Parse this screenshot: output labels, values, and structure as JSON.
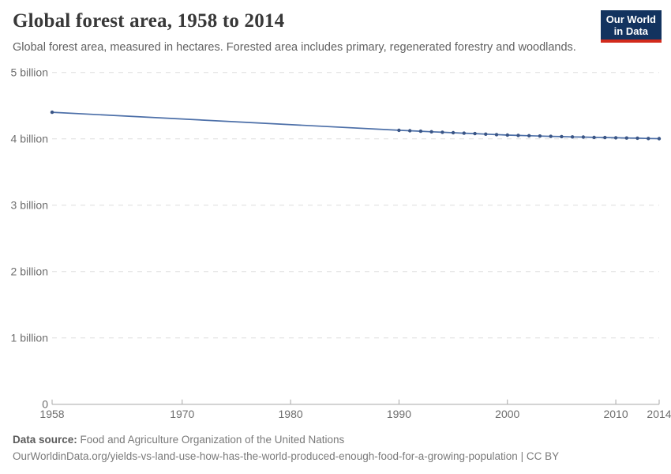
{
  "header": {
    "title": "Global forest area, 1958 to 2014",
    "subtitle": "Global forest area, measured in hectares. Forested area includes primary, regenerated forestry and woodlands."
  },
  "logo": {
    "line1": "Our World",
    "line2": "in Data",
    "background_color": "#13335f",
    "accent_color": "#d22a1c"
  },
  "footer": {
    "data_source_label": "Data source:",
    "data_source_value": "Food and Agriculture Organization of the United Nations",
    "url": "OurWorldinData.org/yields-vs-land-use-how-has-the-world-produced-enough-food-for-a-growing-population",
    "separator": " | ",
    "license": "CC BY"
  },
  "chart_data": {
    "type": "line",
    "title": "Global forest area, 1958 to 2014",
    "xlabel": "",
    "ylabel": "",
    "unit": "hectares",
    "xlim": [
      1958,
      2014
    ],
    "ylim": [
      0,
      5
    ],
    "grid": "horizontal-dashed",
    "legend_position": "none",
    "x_ticks": [
      1958,
      1970,
      1980,
      1990,
      2000,
      2010,
      2014
    ],
    "y_ticks": [
      {
        "value": 0,
        "label": "0"
      },
      {
        "value": 1,
        "label": "1 billion"
      },
      {
        "value": 2,
        "label": "2 billion"
      },
      {
        "value": 3,
        "label": "3 billion"
      },
      {
        "value": 4,
        "label": "4 billion"
      },
      {
        "value": 5,
        "label": "5 billion"
      }
    ],
    "series": [
      {
        "name": "Global forest area",
        "color": "#4c6fa8",
        "point_color": "#3a5585",
        "points_billion_ha": [
          [
            1958,
            4.4
          ],
          [
            1990,
            4.128
          ],
          [
            1991,
            4.121
          ],
          [
            1992,
            4.114
          ],
          [
            1993,
            4.106
          ],
          [
            1994,
            4.099
          ],
          [
            1995,
            4.092
          ],
          [
            1996,
            4.085
          ],
          [
            1997,
            4.078
          ],
          [
            1998,
            4.07
          ],
          [
            1999,
            4.063
          ],
          [
            2000,
            4.056
          ],
          [
            2001,
            4.051
          ],
          [
            2002,
            4.047
          ],
          [
            2003,
            4.042
          ],
          [
            2004,
            4.037
          ],
          [
            2005,
            4.033
          ],
          [
            2006,
            4.029
          ],
          [
            2007,
            4.026
          ],
          [
            2008,
            4.022
          ],
          [
            2009,
            4.019
          ],
          [
            2010,
            4.016
          ],
          [
            2011,
            4.012
          ],
          [
            2012,
            4.009
          ],
          [
            2013,
            4.005
          ],
          [
            2014,
            4.002
          ]
        ]
      }
    ],
    "colors": {
      "gridline": "#dedede",
      "axis": "#a7a7a7",
      "tick_label": "#6e6e6e"
    }
  }
}
